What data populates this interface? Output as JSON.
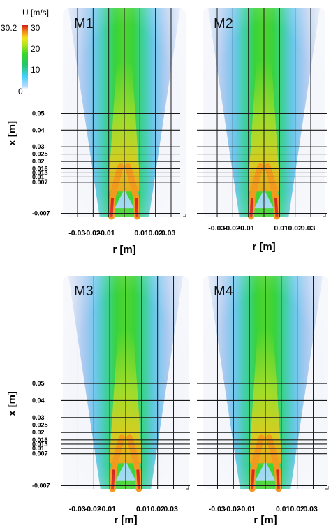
{
  "colorbar": {
    "title": "U [m/s]",
    "max_label": "30.2",
    "ticks": [
      "30",
      "20",
      "10",
      "0"
    ],
    "colors": [
      "#ffffff",
      "#7fb8ff",
      "#44d0ff",
      "#22c76a",
      "#37d62b",
      "#a8e31e",
      "#f2e21a",
      "#f6a21b",
      "#ec4c17",
      "#cf1f14"
    ]
  },
  "panels": [
    {
      "name": "M1",
      "x_axis_label": "r [m]",
      "y_axis_label": "x [m]",
      "r_ticks": [
        "-0.03",
        "-0.02",
        "-0.01",
        "0.01",
        "0.02",
        "0.03"
      ],
      "x_ticks": [
        "0.05",
        "0.04",
        "0.03",
        "0.025",
        "0.02",
        "0.016",
        "0.013",
        "0.01",
        "0.007",
        "-0.007"
      ]
    },
    {
      "name": "M2",
      "x_axis_label": "r [m]",
      "y_axis_label": "",
      "r_ticks": [
        "-0.03",
        "-0.02",
        "-0.01",
        "0.01",
        "0.02",
        "0.03"
      ],
      "x_ticks": []
    },
    {
      "name": "M3",
      "x_axis_label": "r [m]",
      "y_axis_label": "x [m]",
      "r_ticks": [
        "-0.03",
        "-0.02",
        "-0.01",
        "0.01",
        "0.02",
        "0.03"
      ],
      "x_ticks": [
        "0.05",
        "0.04",
        "0.03",
        "0.025",
        "0.02",
        "0.016",
        "0.013",
        "0.01",
        "0.007",
        "-0.007"
      ]
    },
    {
      "name": "M4",
      "x_axis_label": "r [m]",
      "y_axis_label": "",
      "r_ticks": [
        "-0.03",
        "-0.02",
        "-0.01",
        "0.01",
        "0.02",
        "0.03"
      ],
      "x_ticks": []
    }
  ]
}
